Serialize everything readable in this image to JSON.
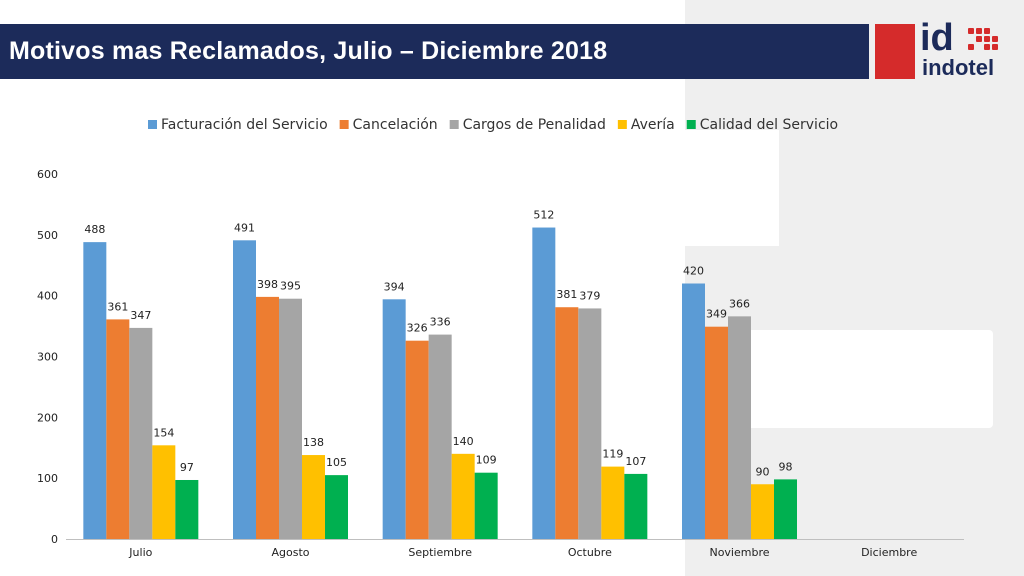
{
  "header": {
    "title": "Motivos mas Reclamados, Julio – Diciembre 2018"
  },
  "logo": {
    "mark": "id",
    "name": "indotel",
    "colors": {
      "red": "#d52b2b",
      "navy": "#1c2b5a"
    }
  },
  "chart_data": {
    "type": "bar",
    "categories": [
      "Julio",
      "Agosto",
      "Septiembre",
      "Octubre",
      "Noviembre",
      "Diciembre"
    ],
    "series": [
      {
        "name": "Facturación del Servicio",
        "color": "#5b9bd5",
        "values": [
          488,
          491,
          394,
          512,
          420,
          null
        ]
      },
      {
        "name": "Cancelación",
        "color": "#ed7d31",
        "values": [
          361,
          398,
          326,
          381,
          349,
          null
        ]
      },
      {
        "name": "Cargos de Penalidad",
        "color": "#a5a5a5",
        "values": [
          347,
          395,
          336,
          379,
          366,
          null
        ]
      },
      {
        "name": "Avería",
        "color": "#ffc000",
        "values": [
          154,
          138,
          140,
          119,
          90,
          null
        ]
      },
      {
        "name": "Calidad del Servicio",
        "color": "#00b050",
        "values": [
          97,
          105,
          109,
          107,
          98,
          null
        ]
      }
    ],
    "ylim": [
      0,
      600
    ],
    "yticks": [
      0,
      100,
      200,
      300,
      400,
      500,
      600
    ],
    "legend": "top",
    "grid": false
  }
}
